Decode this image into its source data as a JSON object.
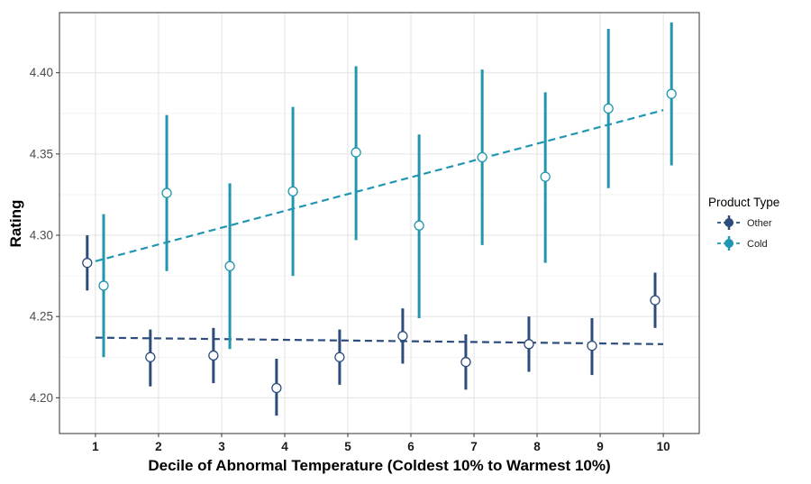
{
  "chart_data": {
    "type": "scatter",
    "xlabel": "Decile of Abnormal Temperature (Coldest 10% to Warmest 10%)",
    "ylabel": "Rating",
    "x": [
      1,
      2,
      3,
      4,
      5,
      6,
      7,
      8,
      9,
      10
    ],
    "x_ticks": [
      "1",
      "2",
      "3",
      "4",
      "5",
      "6",
      "7",
      "8",
      "9",
      "10"
    ],
    "xlim": [
      0.43,
      10.57
    ],
    "y_ticks": [
      "4.20",
      "4.25",
      "4.30",
      "4.35",
      "4.40"
    ],
    "ylim": [
      4.178,
      4.437
    ],
    "grid": true,
    "legend": {
      "title": "Product Type",
      "placement": "right"
    },
    "series": [
      {
        "name": "Other",
        "color": "#2c4c7c",
        "values": [
          4.283,
          4.225,
          4.226,
          4.206,
          4.225,
          4.238,
          4.222,
          4.233,
          4.232,
          4.26
        ],
        "ci_low": [
          4.266,
          4.207,
          4.209,
          4.189,
          4.208,
          4.221,
          4.205,
          4.216,
          4.214,
          4.243
        ],
        "ci_high": [
          4.3,
          4.242,
          4.243,
          4.224,
          4.242,
          4.255,
          4.239,
          4.25,
          4.249,
          4.277
        ],
        "trend": {
          "start": [
            1,
            4.237
          ],
          "end": [
            10,
            4.233
          ],
          "style": "dashed"
        }
      },
      {
        "name": "Cold",
        "color": "#2196b0",
        "values": [
          4.269,
          4.326,
          4.281,
          4.327,
          4.351,
          4.306,
          4.348,
          4.336,
          4.378,
          4.387
        ],
        "ci_low": [
          4.225,
          4.278,
          4.23,
          4.275,
          4.297,
          4.249,
          4.294,
          4.283,
          4.329,
          4.343
        ],
        "ci_high": [
          4.313,
          4.374,
          4.332,
          4.379,
          4.404,
          4.362,
          4.402,
          4.388,
          4.427,
          4.431
        ],
        "trend": {
          "start": [
            1,
            4.284
          ],
          "end": [
            10,
            4.377
          ],
          "style": "dashed"
        }
      }
    ]
  }
}
